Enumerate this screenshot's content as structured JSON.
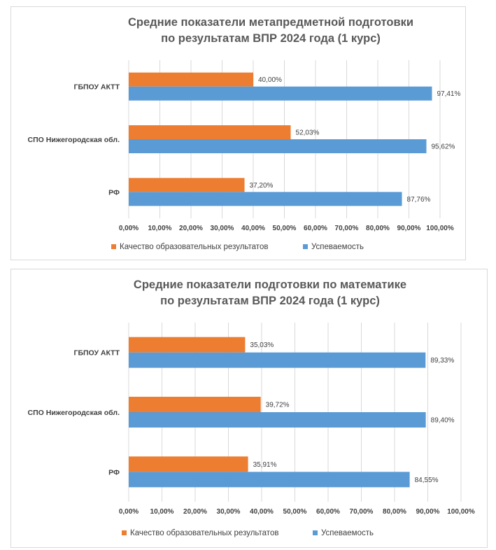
{
  "chart_data": [
    {
      "type": "bar",
      "orientation": "horizontal",
      "title_lines": [
        "Средние показатели метапредметной подготовки",
        "по результатам ВПР 2024 года (1 курс)"
      ],
      "categories": [
        "ГБПОУ АКТТ",
        "СПО Нижегородская обл.",
        "РФ"
      ],
      "series": [
        {
          "name": "Качество образовательных результатов",
          "color": "#ed7d31",
          "values": [
            40.0,
            52.03,
            37.2
          ],
          "labels": [
            "40,00%",
            "52,03%",
            "37,20%"
          ]
        },
        {
          "name": "Успеваемость",
          "color": "#5b9bd5",
          "values": [
            97.41,
            95.62,
            87.76
          ],
          "labels": [
            "97,41%",
            "95,62%",
            "87,76%"
          ]
        }
      ],
      "xlim": [
        0,
        100
      ],
      "ticks": [
        "0,00%",
        "10,00%",
        "20,00%",
        "30,00%",
        "40,00%",
        "50,00%",
        "60,00%",
        "70,00%",
        "80,00%",
        "90,00%",
        "100,00%"
      ],
      "grid": true,
      "legend": "bottom"
    },
    {
      "type": "bar",
      "orientation": "horizontal",
      "title_lines": [
        "Средние показатели подготовки по математике",
        "по результатам ВПР 2024 года (1 курс)"
      ],
      "categories": [
        "ГБПОУ АКТТ",
        "СПО Нижегородская обл.",
        "РФ"
      ],
      "series": [
        {
          "name": "Качество образовательных результатов",
          "color": "#ed7d31",
          "values": [
            35.03,
            39.72,
            35.91
          ],
          "labels": [
            "35,03%",
            "39,72%",
            "35,91%"
          ]
        },
        {
          "name": "Успеваемость",
          "color": "#5b9bd5",
          "values": [
            89.33,
            89.4,
            84.55
          ],
          "labels": [
            "89,33%",
            "89,40%",
            "84,55%"
          ]
        }
      ],
      "xlim": [
        0,
        100
      ],
      "ticks": [
        "0,00%",
        "10,00%",
        "20,00%",
        "30,00%",
        "40,00%",
        "50,00%",
        "60,00%",
        "70,00%",
        "80,00%",
        "90,00%",
        "100,00%"
      ],
      "grid": true,
      "legend": "bottom"
    }
  ]
}
